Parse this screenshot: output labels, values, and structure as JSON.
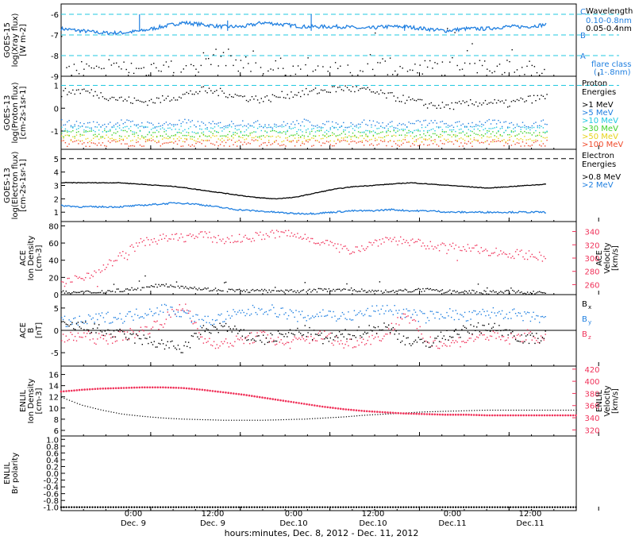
{
  "colors": {
    "black": "#000000",
    "blue": "#1f7fe0",
    "cyan": "#21c8e0",
    "red": "#f0325a",
    "yellow": "#e7d31a",
    "orange": "#f08a1c",
    "green": "#3fd12a",
    "magenta": "#e8406a"
  },
  "chart_data": [
    {
      "type": "scatter",
      "panel": "goes15-xray",
      "ylabel": [
        "GOES-15",
        "log(Xray flux)",
        "[W m-2]"
      ],
      "ylim": [
        -9,
        -5.5
      ],
      "yticks": [
        "-6",
        "-7",
        "-8",
        "-9"
      ],
      "class_labels": [
        "C",
        "B",
        "A"
      ],
      "class_levels": [
        -6,
        -7,
        -8
      ],
      "legend_title": "Wavelength",
      "series": [
        {
          "name": "0.10-0.8nm",
          "color": "#1f7fe0",
          "values": [
            -6.7,
            -6.8,
            -6.9,
            -6.9,
            -6.8,
            -6.6,
            -6.4,
            -6.5,
            -6.6,
            -6.6,
            -6.4,
            -6.5,
            -6.6,
            -6.6,
            -6.6,
            -6.7,
            -6.6,
            -6.6,
            -6.7,
            -6.8,
            -6.7,
            -6.7,
            -6.6,
            -6.6,
            -6.5
          ]
        },
        {
          "name": "0.05-0.4nm",
          "color": "#000000",
          "values": [
            -8.8,
            -8.6,
            -8.9,
            -8.5,
            -8.7,
            -8.3,
            -8.9,
            -8.2,
            -8.0,
            -8.4,
            -8.7,
            -8.5,
            -8.8,
            -8.6,
            -8.9,
            -8.7,
            -8.4,
            -8.8,
            -8.6,
            -8.5,
            -8.2,
            -8.7,
            -8.4,
            -8.6,
            -8.8
          ]
        }
      ],
      "extra_legend": [
        "flare class",
        "(.1-.8nm)"
      ]
    },
    {
      "type": "scatter",
      "panel": "goes13-proton",
      "ylabel": [
        "GOES-13",
        "log(Proton flux)",
        "[cm-2s-1sr-1]"
      ],
      "ylim": [
        -1.8,
        1.4
      ],
      "yticks": [
        "1",
        "0",
        "-1"
      ],
      "legend_title": [
        "Proton",
        "Energies"
      ],
      "series": [
        {
          "name": ">1 MeV",
          "color": "#000000",
          "values": [
            0.7,
            0.8,
            0.6,
            0.4,
            0.3,
            0.4,
            0.6,
            0.8,
            0.7,
            0.5,
            0.4,
            0.6,
            0.7,
            0.8,
            0.9,
            0.8,
            0.6,
            0.4,
            0.2,
            0.1,
            0.2,
            0.3,
            0.2,
            0.4,
            0.5
          ]
        },
        {
          "name": ">5 MeV",
          "color": "#1f7fe0",
          "values": [
            -0.6,
            -0.7,
            -0.7,
            -0.6,
            -0.7,
            -0.7,
            -0.6,
            -0.7,
            -0.7,
            -0.6,
            -0.7,
            -0.7,
            -0.6,
            -0.7,
            -0.7,
            -0.6,
            -0.7,
            -0.7,
            -0.6,
            -0.7,
            -0.7,
            -0.6,
            -0.7,
            -0.7,
            -0.6
          ]
        },
        {
          "name": ">10 MeV",
          "color": "#21c8e0",
          "values": [
            -0.9,
            -0.9,
            -0.9,
            -0.9,
            -0.9,
            -0.9,
            -0.9,
            -0.9,
            -0.9,
            -0.9,
            -0.9,
            -0.9,
            -0.9,
            -0.9,
            -0.9,
            -0.9,
            -0.9,
            -0.9,
            -0.9,
            -0.9,
            -0.9,
            -0.9,
            -0.9,
            -0.9,
            -0.9
          ]
        },
        {
          "name": ">30 MeV",
          "color": "#3fd12a",
          "values": [
            -1.1,
            -1.1,
            -1.1,
            -1.1,
            -1.1,
            -1.1,
            -1.1,
            -1.1,
            -1.1,
            -1.1,
            -1.1,
            -1.1,
            -1.1,
            -1.1,
            -1.1,
            -1.1,
            -1.1,
            -1.1,
            -1.1,
            -1.1,
            -1.1,
            -1.1,
            -1.1,
            -1.1,
            -1.1
          ]
        },
        {
          "name": ">50 MeV",
          "color": "#e7d31a",
          "values": [
            -1.3,
            -1.3,
            -1.3,
            -1.3,
            -1.3,
            -1.3,
            -1.3,
            -1.3,
            -1.3,
            -1.3,
            -1.3,
            -1.3,
            -1.3,
            -1.3,
            -1.3,
            -1.3,
            -1.3,
            -1.3,
            -1.3,
            -1.3,
            -1.3,
            -1.3,
            -1.3,
            -1.3,
            -1.3
          ]
        },
        {
          "name": ">100 MeV",
          "color": "#f04a2a",
          "values": [
            -1.5,
            -1.5,
            -1.5,
            -1.5,
            -1.5,
            -1.5,
            -1.5,
            -1.5,
            -1.5,
            -1.5,
            -1.5,
            -1.5,
            -1.5,
            -1.5,
            -1.5,
            -1.5,
            -1.5,
            -1.5,
            -1.5,
            -1.5,
            -1.5,
            -1.5,
            -1.5,
            -1.5,
            -1.5
          ]
        }
      ],
      "reference_level": 1.0
    },
    {
      "type": "line",
      "panel": "goes13-electron",
      "ylabel": [
        "GOES-13",
        "log(Electron flux)",
        "[cm-2s-1sr-1]"
      ],
      "ylim": [
        0.3,
        5.7
      ],
      "yticks": [
        "5",
        "4",
        "3",
        "2",
        "1"
      ],
      "legend_title": [
        "Electron",
        "Energies"
      ],
      "series": [
        {
          "name": ">0.8 MeV",
          "color": "#000000",
          "values": [
            3.2,
            3.2,
            3.2,
            3.2,
            3.1,
            3.0,
            2.9,
            2.7,
            2.5,
            2.3,
            2.1,
            2.0,
            2.1,
            2.4,
            2.7,
            2.9,
            3.0,
            3.1,
            3.2,
            3.1,
            3.0,
            2.9,
            2.8,
            2.9,
            3.0,
            3.1
          ]
        },
        {
          "name": ">2 MeV",
          "color": "#1f7fe0",
          "values": [
            1.5,
            1.4,
            1.4,
            1.4,
            1.5,
            1.6,
            1.7,
            1.6,
            1.4,
            1.2,
            1.1,
            1.0,
            0.9,
            0.9,
            1.0,
            1.1,
            1.1,
            1.2,
            1.1,
            1.1,
            1.0,
            1.0,
            1.0,
            1.0,
            1.0,
            1.0
          ]
        }
      ],
      "reference_level": 5.0
    },
    {
      "type": "scatter",
      "panel": "ace-plasma",
      "ylabel": [
        "ACE",
        "Ion Density",
        "[cm-3]"
      ],
      "y2label": [
        "ACE",
        "Velocity",
        "[km/s]"
      ],
      "ylim": [
        0,
        85
      ],
      "y2lim": [
        245,
        355
      ],
      "yticks": [
        "80",
        "60",
        "40",
        "20",
        "0"
      ],
      "y2ticks": [
        "340",
        "320",
        "300",
        "280",
        "260"
      ],
      "series": [
        {
          "name": "density",
          "color": "#000000",
          "values": [
            3,
            3,
            4,
            6,
            8,
            12,
            10,
            7,
            6,
            5,
            5,
            4,
            5,
            6,
            7,
            5,
            4,
            5,
            6,
            4,
            4,
            3,
            4,
            3,
            3
          ]
        },
        {
          "name": "velocity",
          "color": "#f0325a",
          "values": [
            262,
            272,
            285,
            305,
            325,
            330,
            332,
            335,
            328,
            330,
            335,
            338,
            332,
            325,
            312,
            318,
            330,
            326,
            320,
            318,
            315,
            312,
            308,
            306,
            302
          ]
        }
      ]
    },
    {
      "type": "scatter",
      "panel": "ace-mag",
      "ylabel": [
        "ACE",
        "B",
        "[nT]"
      ],
      "ylim": [
        -8,
        8
      ],
      "yticks": [
        "5",
        "0",
        "-5"
      ],
      "series": [
        {
          "name": "Bx",
          "color": "#000000",
          "values": [
            1,
            1,
            0,
            -1,
            -2,
            -3,
            -4,
            0,
            1,
            -1,
            -2,
            -1,
            0,
            -2,
            -1,
            0,
            1,
            -2,
            -3,
            -1,
            0,
            1,
            0,
            -2,
            -1
          ]
        },
        {
          "name": "By",
          "color": "#1f7fe0",
          "values": [
            2,
            2,
            3,
            3,
            4,
            5,
            4,
            2,
            3,
            4,
            5,
            4,
            3,
            4,
            3,
            4,
            5,
            4,
            3,
            4,
            3,
            4,
            4,
            3,
            3
          ]
        },
        {
          "name": "Bz",
          "color": "#f0325a",
          "values": [
            -2,
            -1,
            -2,
            -1,
            0,
            2,
            6,
            -2,
            -3,
            -2,
            -1,
            -3,
            -2,
            -1,
            -3,
            -2,
            -1,
            4,
            -2,
            -3,
            -2,
            -1,
            -2,
            -1,
            -2
          ]
        }
      ]
    },
    {
      "type": "line",
      "panel": "enlil-plasma",
      "ylabel": [
        "ENLIL",
        "Ion Density",
        "[cm-3]"
      ],
      "y2label": [
        "ENLIL",
        "Velocity",
        "[km/s]"
      ],
      "ylim": [
        5,
        17.5
      ],
      "y2lim": [
        310,
        425
      ],
      "yticks": [
        "16",
        "14",
        "12",
        "10",
        "8",
        "6"
      ],
      "y2ticks": [
        "420",
        "400",
        "380",
        "360",
        "340",
        "320"
      ],
      "series": [
        {
          "name": "density",
          "color": "#000000",
          "values": [
            12.0,
            10.6,
            9.7,
            9.0,
            8.6,
            8.3,
            8.1,
            8.0,
            7.9,
            7.9,
            7.9,
            8.0,
            8.1,
            8.3,
            8.5,
            8.8,
            9.0,
            9.2,
            9.4,
            9.5,
            9.6,
            9.7,
            9.7,
            9.7,
            9.7
          ]
        },
        {
          "name": "velocity",
          "color": "#f0325a",
          "values": [
            383,
            386,
            388,
            389,
            390,
            390,
            389,
            386,
            382,
            378,
            373,
            368,
            363,
            358,
            354,
            351,
            349,
            347,
            346,
            345,
            345,
            344,
            344,
            344,
            344
          ]
        }
      ]
    },
    {
      "type": "scatter",
      "panel": "enlil-polarity",
      "ylabel": [
        "ENLIL",
        "Br polarity"
      ],
      "ylim": [
        -1.1,
        1.1
      ],
      "yticks": [
        "1.0",
        "0.8",
        "0.6",
        "0.4",
        "0.2",
        "0.0",
        "-0.2",
        "-0.4",
        "-0.6",
        "-0.8",
        "-1.0"
      ],
      "series": [
        {
          "name": "polarity",
          "color": "#000000",
          "values": [
            -1,
            -1,
            -1,
            -1,
            -1,
            -1,
            -1,
            -1,
            -1,
            -1,
            -1,
            -1,
            -1,
            -1,
            -1,
            -1,
            -1,
            -1,
            -1,
            -1,
            -1,
            -1,
            -1,
            -1,
            -1
          ]
        }
      ]
    }
  ],
  "x_axis": {
    "hour_labels": [
      "0:00",
      "12:00",
      "0:00",
      "12:00",
      "0:00",
      "12:00"
    ],
    "day_labels": [
      "Dec. 9",
      "Dec. 9",
      "Dec.10",
      "Dec.10",
      "Dec.11",
      "Dec.11"
    ],
    "title": "hours:minutes, Dec. 8, 2012 - Dec. 11, 2012",
    "range_hours": [
      -12,
      57
    ],
    "tick_hours": [
      0,
      12,
      24,
      36,
      48,
      60
    ]
  }
}
